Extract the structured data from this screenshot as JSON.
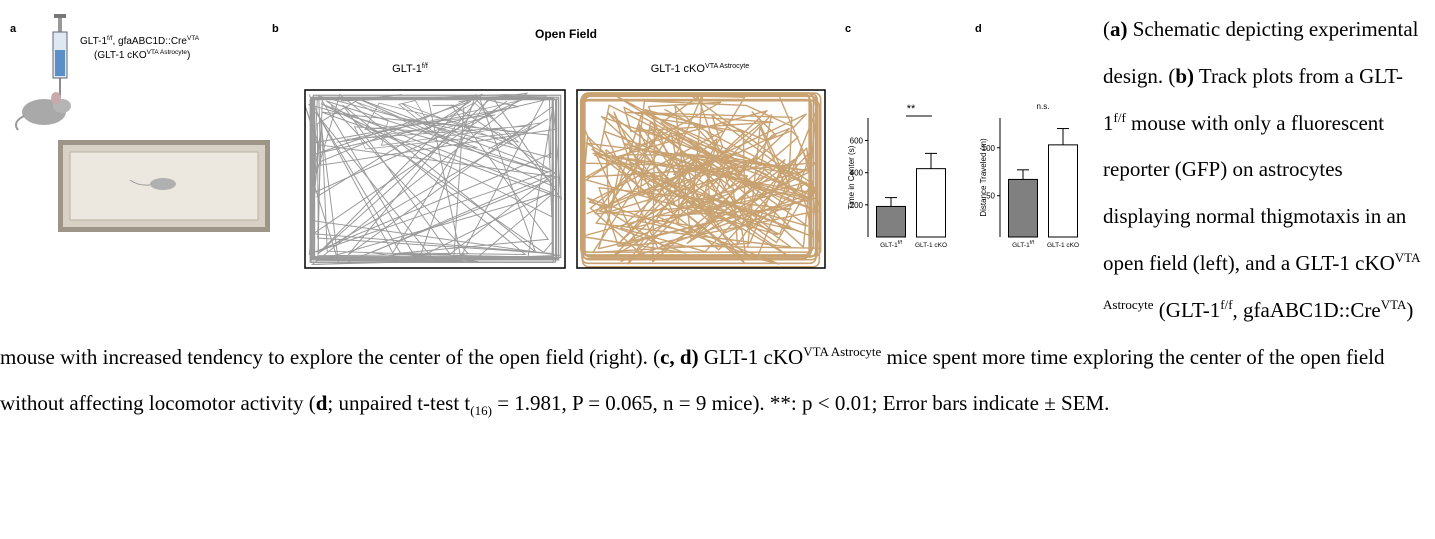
{
  "figure": {
    "panel_a": {
      "label": "a",
      "line1": [
        "GLT-1",
        "f/f",
        ", gfaABC1D::Cre",
        "VTA"
      ],
      "line2": [
        "(GLT-1 cKO",
        "VTA Astrocyte",
        ")"
      ]
    },
    "panel_b": {
      "label": "b",
      "title": "Open Field",
      "left": [
        "GLT-1",
        "f/f"
      ],
      "right": [
        "GLT-1 cKO",
        "VTA Astrocyte"
      ]
    }
  },
  "chart_data": [
    {
      "type": "bar",
      "panel_label": "c",
      "ylabel": "Time in Center (s)",
      "categories": [
        "GLT-1",
        "GLT-1 cKO"
      ],
      "category_superscripts": [
        "f/f",
        null
      ],
      "values": [
        190,
        425
      ],
      "errors": [
        55,
        95
      ],
      "colors": [
        "#808080",
        "#ffffff"
      ],
      "ylim": [
        0,
        740
      ],
      "yticks": [
        200,
        400,
        600
      ],
      "annotation": "**",
      "annotation_line": true
    },
    {
      "type": "bar",
      "panel_label": "d",
      "ylabel": "Distance Traveled (m)",
      "categories": [
        "GLT-1",
        "GLT-1 cKO"
      ],
      "category_superscripts": [
        "f/f",
        null
      ],
      "values": [
        67,
        103
      ],
      "errors": [
        10,
        17
      ],
      "colors": [
        "#808080",
        "#ffffff"
      ],
      "ylim": [
        7,
        131
      ],
      "yticks": [
        50,
        100
      ],
      "annotation": "n.s.",
      "annotation_line": false
    }
  ],
  "caption": {
    "runs": [
      "(",
      "a)",
      " Schematic depicting experimental design. (",
      "b)",
      " Track plots from a GLT-1",
      "f/f",
      " mouse with only a fluorescent reporter (GFP) on astrocytes displaying normal thigmotaxis in an open field (left), and a GLT-1 cKO",
      "VTA Astrocyte",
      " (GLT-1",
      "f/f",
      ", gfaABC1D::Cre",
      "VTA",
      ") mouse with increased tendency to explore the center of the open field (right). (",
      "c, d)",
      " GLT-1 cKO",
      "VTA Astrocyte",
      " mice spent more time exploring the center of the open field without affecting locomotor activity (",
      "d",
      "; unpaired t-test t",
      "(16)",
      " = 1.981, P = 0.065, n = 9 mice). **: p < 0.01; Error bars indicate ± SEM."
    ]
  }
}
